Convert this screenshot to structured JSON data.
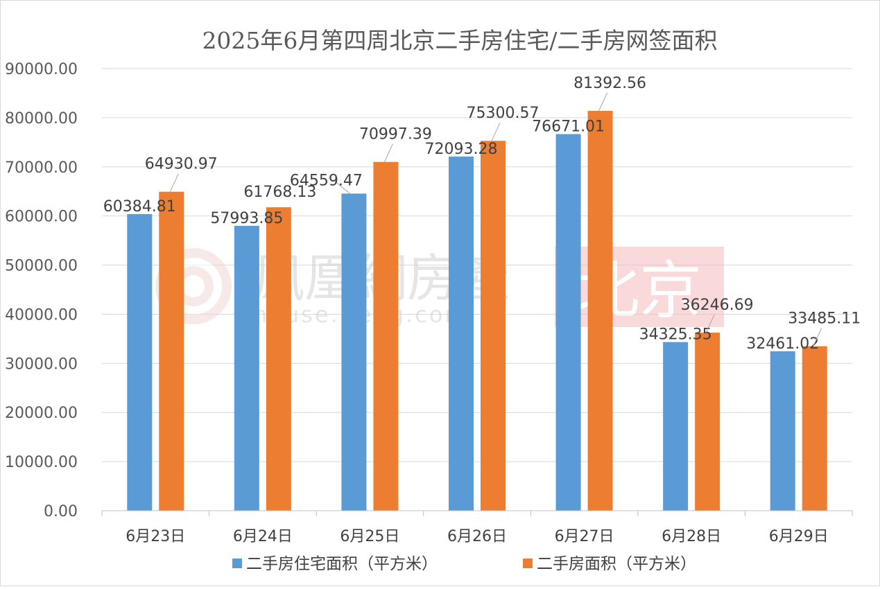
{
  "chart_data": {
    "type": "bar",
    "title": "2025年6月第四周北京二手房住宅/二手房网签面积",
    "categories": [
      "6月23日",
      "6月24日",
      "6月25日",
      "6月26日",
      "6月27日",
      "6月28日",
      "6月29日"
    ],
    "series": [
      {
        "name": "二手房住宅面积（平方米）",
        "color": "#5b9bd5",
        "values": [
          60384.81,
          57993.85,
          64559.47,
          72093.28,
          76671.01,
          34325.35,
          32461.02
        ],
        "labels": [
          "60384.81",
          "57993.85",
          "64559.47",
          "72093.28",
          "76671.01",
          "34325.35",
          "32461.02"
        ]
      },
      {
        "name": "二手房面积（平方米）",
        "color": "#ed7d31",
        "values": [
          64930.97,
          61768.13,
          70997.39,
          75300.57,
          81392.56,
          36246.69,
          33485.11
        ],
        "labels": [
          "64930.97",
          "61768.13",
          "70997.39",
          "75300.57",
          "81392.56",
          "36246.69",
          "33485.11"
        ]
      }
    ],
    "ylim": [
      0,
      90000
    ],
    "yticks": [
      "0.00",
      "10000.00",
      "20000.00",
      "30000.00",
      "40000.00",
      "50000.00",
      "60000.00",
      "70000.00",
      "80000.00",
      "90000.00"
    ],
    "grid": true,
    "legend_position": "bottom"
  },
  "watermark": {
    "brand": "鳳凰網房產",
    "url": "house.ifeng.com",
    "city": "北京"
  }
}
